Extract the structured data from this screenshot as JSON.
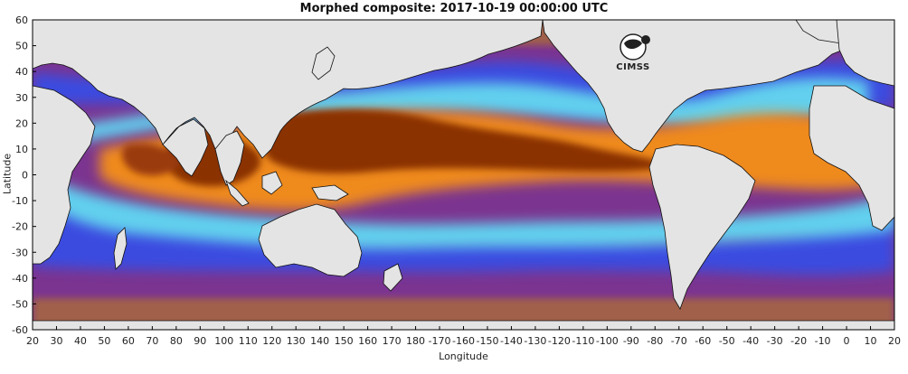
{
  "title": "Morphed composite: 2017-10-19 00:00:00 UTC",
  "x_axis": {
    "label": "Longitude",
    "ticks": [
      "20",
      "30",
      "40",
      "50",
      "60",
      "70",
      "80",
      "90",
      "100",
      "110",
      "120",
      "130",
      "140",
      "150",
      "160",
      "170",
      "180",
      "-170",
      "-160",
      "-150",
      "-140",
      "-130",
      "-120",
      "-110",
      "-100",
      "-90",
      "-80",
      "-70",
      "-60",
      "-50",
      "-40",
      "-30",
      "-20",
      "-10",
      "0",
      "10",
      "20"
    ]
  },
  "y_axis": {
    "label": "Latitude",
    "ticks": [
      "60",
      "50",
      "40",
      "30",
      "20",
      "10",
      "0",
      "-10",
      "-20",
      "-30",
      "-40",
      "-50",
      "-60"
    ]
  },
  "logo": {
    "text": "CIMSS"
  },
  "colors": {
    "land": "#e6e6e6",
    "very_dry": "#7a2f8f",
    "dry": "#3545d8",
    "moderate": "#5fd0ee",
    "moist": "#ef8a1f",
    "very_moist": "#8a3305",
    "polar_brown": "#9d5b45"
  }
}
